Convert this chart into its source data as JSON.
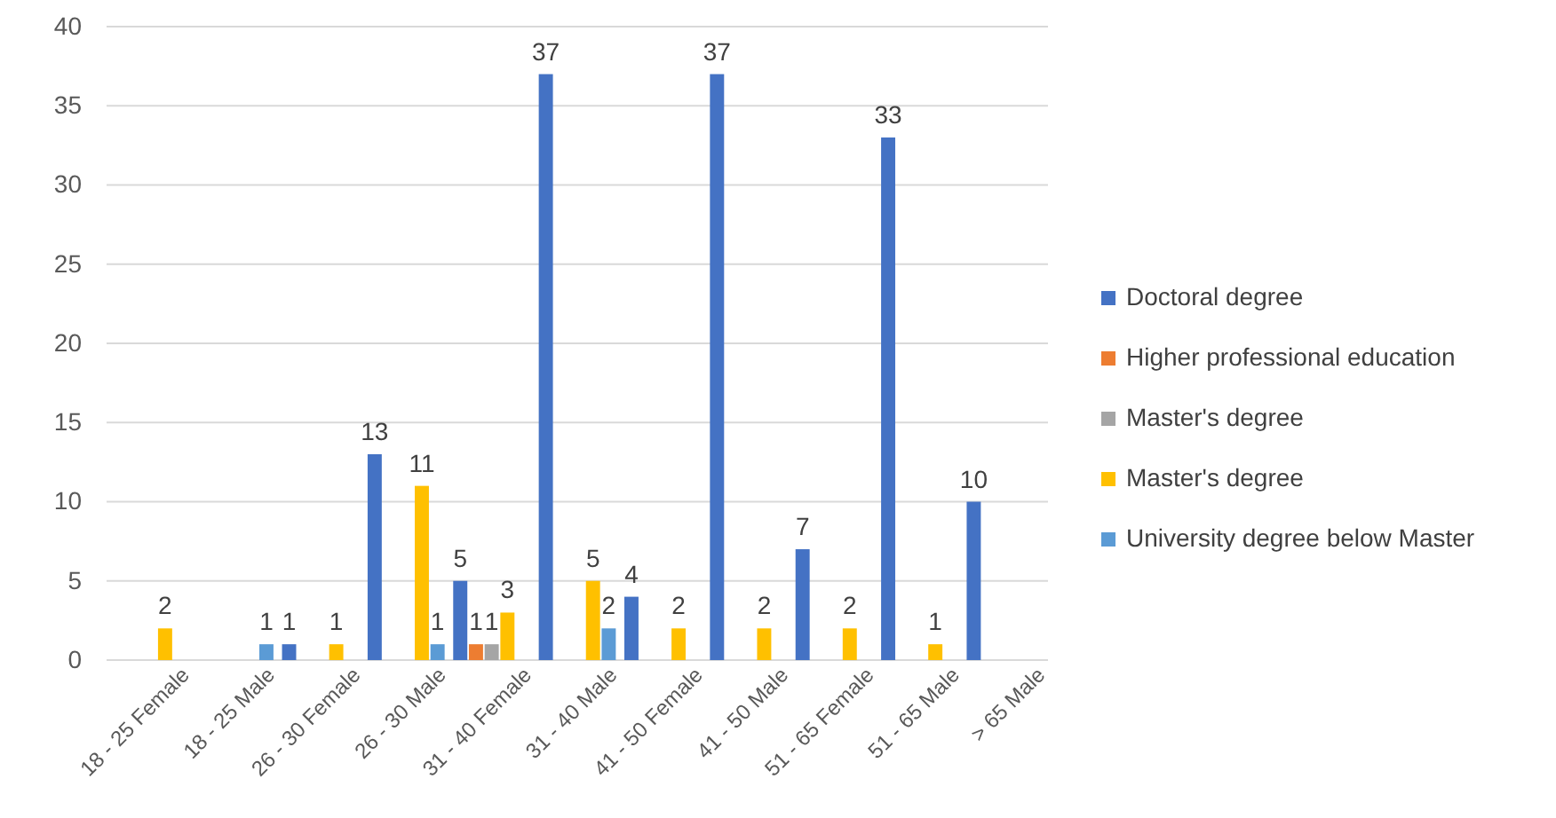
{
  "chart_data": {
    "type": "bar",
    "categories": [
      "18 - 25 Female",
      "18 - 25 Male",
      "26 - 30 Female",
      "26 - 30 Male",
      "31 - 40 Female",
      "31 - 40 Male",
      "41 - 50 Female",
      "41 - 50 Male",
      "51 - 65 Female",
      "51 - 65 Male",
      "> 65 Male"
    ],
    "series": [
      {
        "name": "Doctoral degree",
        "color": "#4472c4",
        "values": [
          null,
          null,
          1,
          13,
          5,
          37,
          4,
          37,
          7,
          33,
          10
        ]
      },
      {
        "name": "Higher professional education",
        "color": "#ed7d31",
        "values": [
          null,
          null,
          null,
          null,
          1,
          null,
          null,
          null,
          null,
          null,
          null
        ]
      },
      {
        "name": "Master's degree",
        "color": "#a5a5a5",
        "values": [
          null,
          null,
          null,
          null,
          1,
          null,
          null,
          null,
          null,
          null,
          null
        ]
      },
      {
        "name": "Master's degree",
        "color": "#ffc000",
        "values": [
          2,
          null,
          1,
          11,
          3,
          5,
          2,
          2,
          2,
          1,
          null
        ]
      },
      {
        "name": "University degree below Master",
        "color": "#5b9bd5",
        "values": [
          null,
          1,
          null,
          1,
          null,
          2,
          null,
          null,
          null,
          null,
          null
        ]
      }
    ],
    "ylim": [
      0,
      40
    ],
    "yticks": [
      0,
      5,
      10,
      15,
      20,
      25,
      30,
      35,
      40
    ],
    "grid": "y",
    "legend": "right",
    "data_labels": true
  }
}
